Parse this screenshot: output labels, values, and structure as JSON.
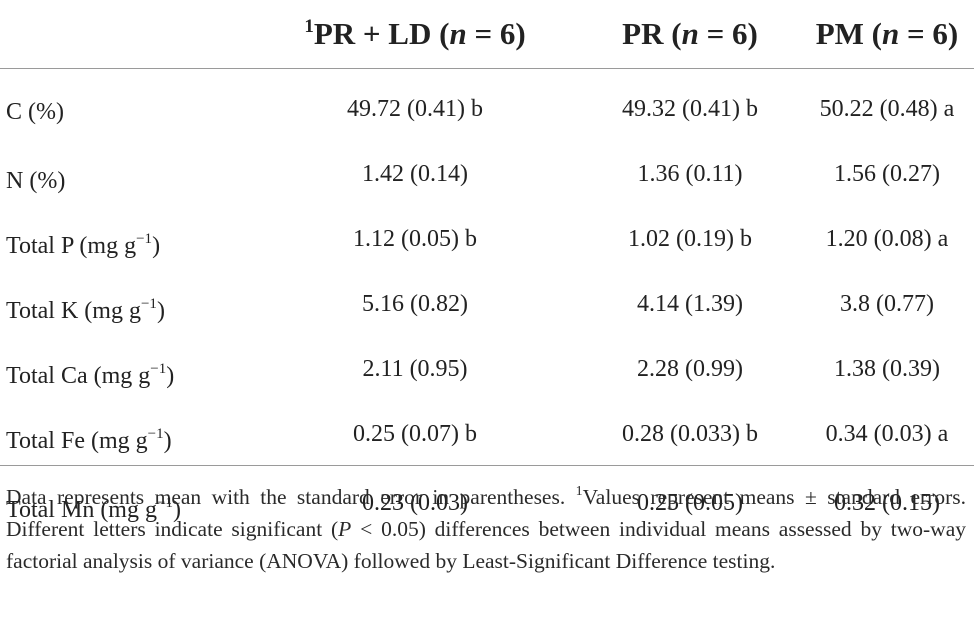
{
  "table": {
    "headers": [
      {
        "label": "",
        "sup": ""
      },
      {
        "sup": "1",
        "prefix": "PR + LD (",
        "n": "n",
        "suffix": " = 6)"
      },
      {
        "sup": "",
        "prefix": "PR (",
        "n": "n",
        "suffix": " = 6)"
      },
      {
        "sup": "",
        "prefix": "PM (",
        "n": "n",
        "suffix": " = 6)"
      }
    ],
    "rows": [
      {
        "label": "C (%)",
        "unit_sup": "",
        "unit_close": "",
        "values": [
          "49.72 (0.41) b",
          "49.32 (0.41) b",
          "50.22 (0.48) a"
        ]
      },
      {
        "label": "N (%)",
        "unit_sup": "",
        "unit_close": "",
        "values": [
          "1.42 (0.14)",
          "1.36 (0.11)",
          "1.56 (0.27)"
        ]
      },
      {
        "label": "Total P (mg g",
        "unit_sup": "−1",
        "unit_close": ")",
        "values": [
          "1.12 (0.05) b",
          "1.02 (0.19) b",
          "1.20 (0.08) a"
        ]
      },
      {
        "label": "Total K (mg g",
        "unit_sup": "−1",
        "unit_close": ")",
        "values": [
          "5.16 (0.82)",
          "4.14 (1.39)",
          "3.8 (0.77)"
        ]
      },
      {
        "label": "Total Ca (mg g",
        "unit_sup": "−1",
        "unit_close": ")",
        "values": [
          "2.11 (0.95)",
          "2.28 (0.99)",
          "1.38 (0.39)"
        ]
      },
      {
        "label": "Total Fe (mg g",
        "unit_sup": "−1",
        "unit_close": ")",
        "values": [
          "0.25 (0.07) b",
          "0.28 (0.033) b",
          "0.34 (0.03) a"
        ]
      },
      {
        "label": "Total Mn (mg g",
        "unit_sup": "−1",
        "unit_close": ")",
        "values": [
          "0.23 (0.03)",
          "0.25 (0.05)",
          "0.32 (0.15)"
        ]
      }
    ]
  },
  "footnote": {
    "part1": "Data represents mean with the standard error in parentheses. ",
    "sup": "1",
    "part2": "Values represent means ± standard errors. Different letters indicate significant (",
    "p_italic": "P",
    "part3": " < 0.05) differences between individual means assessed by two-way factorial analysis of variance (ANOVA) followed by Least-Significant Difference testing."
  }
}
